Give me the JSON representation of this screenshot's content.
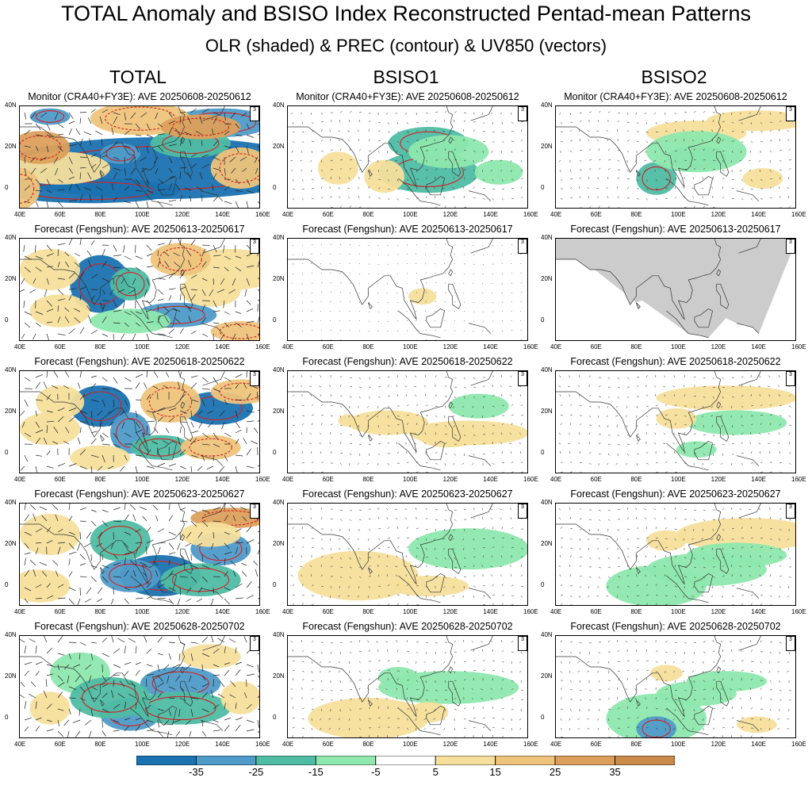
{
  "header": {
    "title": "TOTAL Anomaly and BSISO Index Reconstructed Pentad-mean Patterns",
    "subtitle": "OLR (shaded) & PREC (contour) & UV850 (vectors)"
  },
  "columns": [
    "TOTAL",
    "BSISO1",
    "BSISO2"
  ],
  "rows": [
    {
      "label": "Monitor (CRA40+FY3E): AVE 20250608-20250612"
    },
    {
      "label": "Forecast (Fengshun): AVE 20250613-20250617"
    },
    {
      "label": "Forecast (Fengshun): AVE 20250618-20250622"
    },
    {
      "label": "Forecast (Fengshun): AVE 20250623-20250627"
    },
    {
      "label": "Forecast (Fengshun): AVE 20250628-20250702"
    }
  ],
  "vector_key": "3",
  "map_axes": {
    "lon_ticks": [
      "40E",
      "60E",
      "80E",
      "100E",
      "120E",
      "140E",
      "160E"
    ],
    "lat_ticks": [
      "40N",
      "20N",
      "0"
    ]
  },
  "colorbar": {
    "labels": [
      "-35",
      "-25",
      "-15",
      "-5",
      "5",
      "15",
      "25",
      "35"
    ],
    "colors": [
      "#1a72b0",
      "#4f9bc9",
      "#4fbca3",
      "#8ee8ae",
      "#ffffff",
      "#f6df9c",
      "#eec47c",
      "#dca05c",
      "#c98a4a"
    ]
  },
  "chart_data": {
    "type": "heatmap",
    "variables": [
      "OLR (shaded)",
      "PREC (contour)",
      "UV850 (vectors)"
    ],
    "xlim": [
      40,
      160
    ],
    "ylim": [
      -10,
      40
    ],
    "levels": [
      -35,
      -25,
      -15,
      -5,
      5,
      15,
      25,
      35
    ]
  },
  "patches": {
    "p00": [
      [
        110,
        10,
        80,
        15,
        -35
      ],
      [
        75,
        -1,
        45,
        6,
        -35
      ],
      [
        55,
        35,
        10,
        4,
        -25
      ],
      [
        90,
        17,
        10,
        5,
        -25
      ],
      [
        140,
        32,
        25,
        7,
        -25
      ],
      [
        125,
        22,
        20,
        7,
        -15
      ],
      [
        60,
        10,
        25,
        8,
        15
      ],
      [
        100,
        34,
        25,
        8,
        25
      ],
      [
        130,
        30,
        20,
        6,
        35
      ],
      [
        50,
        20,
        15,
        8,
        35
      ],
      [
        150,
        10,
        15,
        10,
        25
      ],
      [
        40,
        0,
        10,
        10,
        25
      ]
    ],
    "p01": [
      [
        110,
        22,
        20,
        8,
        -15
      ],
      [
        110,
        8,
        25,
        10,
        -15
      ],
      [
        120,
        18,
        20,
        8,
        -5
      ],
      [
        65,
        10,
        10,
        8,
        15
      ],
      [
        88,
        6,
        10,
        8,
        15
      ],
      [
        145,
        8,
        12,
        6,
        -5
      ]
    ],
    "p02": [
      [
        110,
        27,
        25,
        6,
        15
      ],
      [
        140,
        33,
        25,
        5,
        15
      ],
      [
        110,
        15,
        15,
        6,
        -15
      ],
      [
        90,
        5,
        10,
        8,
        -15
      ],
      [
        110,
        18,
        25,
        10,
        -5
      ],
      [
        143,
        5,
        10,
        5,
        15
      ]
    ],
    "p10": [
      [
        80,
        18,
        15,
        14,
        -35
      ],
      [
        118,
        3,
        20,
        6,
        -25
      ],
      [
        95,
        18,
        10,
        8,
        -15
      ],
      [
        55,
        25,
        15,
        10,
        15
      ],
      [
        145,
        25,
        25,
        10,
        15
      ],
      [
        135,
        15,
        15,
        8,
        15
      ],
      [
        150,
        -5,
        15,
        5,
        25
      ],
      [
        120,
        30,
        15,
        8,
        25
      ],
      [
        60,
        5,
        15,
        8,
        15
      ],
      [
        95,
        0,
        20,
        6,
        -5
      ]
    ],
    "p11": [
      [
        107,
        12,
        7,
        4,
        15
      ]
    ],
    "p12": [],
    "p20": [
      [
        80,
        23,
        15,
        10,
        -35
      ],
      [
        138,
        22,
        18,
        8,
        -35
      ],
      [
        95,
        10,
        10,
        10,
        -25
      ],
      [
        110,
        3,
        15,
        6,
        -15
      ],
      [
        115,
        25,
        15,
        10,
        25
      ],
      [
        150,
        30,
        15,
        6,
        25
      ],
      [
        60,
        25,
        12,
        8,
        15
      ],
      [
        80,
        -2,
        15,
        6,
        15
      ],
      [
        135,
        3,
        15,
        6,
        25
      ],
      [
        55,
        12,
        15,
        8,
        15
      ]
    ],
    "p21": [
      [
        90,
        15,
        20,
        6,
        15
      ],
      [
        130,
        10,
        30,
        6,
        15
      ],
      [
        135,
        23,
        15,
        6,
        -5
      ],
      [
        70,
        16,
        5,
        3,
        15
      ],
      [
        120,
        8,
        15,
        5,
        15
      ]
    ],
    "p22": [
      [
        125,
        27,
        35,
        6,
        15
      ],
      [
        130,
        15,
        25,
        6,
        -5
      ],
      [
        100,
        17,
        10,
        5,
        15
      ],
      [
        110,
        2,
        10,
        4,
        -5
      ]
    ],
    "p30": [
      [
        110,
        5,
        20,
        10,
        -35
      ],
      [
        140,
        18,
        15,
        8,
        -25
      ],
      [
        90,
        22,
        15,
        10,
        -15
      ],
      [
        95,
        5,
        15,
        8,
        -25
      ],
      [
        130,
        3,
        20,
        8,
        -15
      ],
      [
        145,
        33,
        20,
        5,
        35
      ],
      [
        55,
        25,
        15,
        10,
        15
      ],
      [
        50,
        0,
        15,
        8,
        15
      ],
      [
        135,
        25,
        15,
        6,
        15
      ]
    ],
    "p31": [
      [
        75,
        5,
        30,
        12,
        15
      ],
      [
        130,
        18,
        30,
        10,
        -5
      ],
      [
        110,
        0,
        20,
        5,
        15
      ]
    ],
    "p32": [
      [
        135,
        25,
        35,
        8,
        15
      ],
      [
        90,
        0,
        25,
        10,
        -5
      ],
      [
        130,
        15,
        25,
        6,
        -5
      ],
      [
        115,
        8,
        30,
        8,
        -5
      ],
      [
        95,
        22,
        10,
        5,
        15
      ]
    ],
    "p40": [
      [
        120,
        17,
        20,
        8,
        -25
      ],
      [
        95,
        2,
        15,
        8,
        -25
      ],
      [
        120,
        5,
        25,
        8,
        -15
      ],
      [
        70,
        22,
        15,
        10,
        -5
      ],
      [
        85,
        10,
        20,
        10,
        -15
      ],
      [
        135,
        30,
        15,
        6,
        15
      ],
      [
        55,
        5,
        10,
        8,
        15
      ],
      [
        150,
        10,
        10,
        8,
        15
      ]
    ],
    "p41": [
      [
        80,
        0,
        30,
        10,
        15
      ],
      [
        120,
        15,
        35,
        8,
        -5
      ],
      [
        95,
        20,
        10,
        5,
        -5
      ],
      [
        110,
        3,
        10,
        5,
        15
      ]
    ],
    "p42": [
      [
        90,
        0,
        25,
        12,
        -5
      ],
      [
        90,
        -5,
        10,
        6,
        -25
      ],
      [
        110,
        12,
        20,
        6,
        -5
      ],
      [
        125,
        18,
        20,
        5,
        -5
      ],
      [
        95,
        22,
        8,
        4,
        15
      ],
      [
        140,
        -3,
        10,
        4,
        15
      ]
    ]
  }
}
